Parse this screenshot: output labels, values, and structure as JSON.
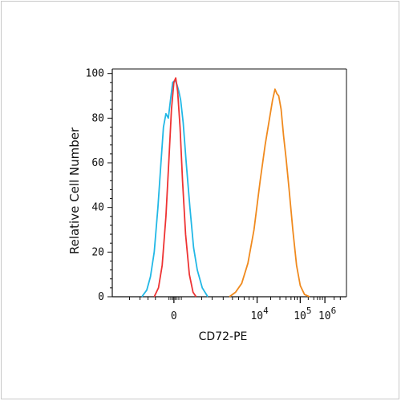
{
  "chart_data": {
    "type": "line",
    "title": "",
    "xlabel": "CD72-PE",
    "ylabel": "Relative Cell Number",
    "x_scale": "biexponential",
    "ylim": [
      0,
      100
    ],
    "y_ticks": [
      0,
      20,
      40,
      60,
      80,
      100
    ],
    "x_tick_labels": [
      {
        "base": "0",
        "exp": ""
      },
      {
        "base": "10",
        "exp": "4"
      },
      {
        "base": "10",
        "exp": "5"
      },
      {
        "base": "10",
        "exp": "6"
      }
    ],
    "grid": false,
    "legend": "none",
    "series": [
      {
        "color": "#22b8e6",
        "points": [
          [
            -0.52,
            0
          ],
          [
            -0.44,
            3
          ],
          [
            -0.38,
            9
          ],
          [
            -0.32,
            20
          ],
          [
            -0.26,
            40
          ],
          [
            -0.21,
            60
          ],
          [
            -0.17,
            76
          ],
          [
            -0.13,
            82
          ],
          [
            -0.09,
            80
          ],
          [
            -0.06,
            87
          ],
          [
            -0.02,
            96
          ],
          [
            0.02,
            97
          ],
          [
            0.05,
            95
          ],
          [
            0.08,
            92
          ],
          [
            0.11,
            88
          ],
          [
            0.15,
            78
          ],
          [
            0.2,
            60
          ],
          [
            0.26,
            40
          ],
          [
            0.32,
            22
          ],
          [
            0.38,
            12
          ],
          [
            0.46,
            4
          ],
          [
            0.55,
            0
          ]
        ]
      },
      {
        "color": "#ee3333",
        "points": [
          [
            -0.32,
            0
          ],
          [
            -0.25,
            4
          ],
          [
            -0.19,
            14
          ],
          [
            -0.13,
            36
          ],
          [
            -0.08,
            62
          ],
          [
            -0.04,
            84
          ],
          [
            0.0,
            96
          ],
          [
            0.03,
            98
          ],
          [
            0.06,
            92
          ],
          [
            0.1,
            76
          ],
          [
            0.14,
            52
          ],
          [
            0.19,
            28
          ],
          [
            0.25,
            10
          ],
          [
            0.31,
            2
          ],
          [
            0.36,
            0
          ]
        ]
      },
      {
        "color": "#f08a1e",
        "points": [
          [
            0.9,
            0
          ],
          [
            1.0,
            2
          ],
          [
            1.1,
            6
          ],
          [
            1.2,
            15
          ],
          [
            1.3,
            30
          ],
          [
            1.4,
            52
          ],
          [
            1.48,
            68
          ],
          [
            1.54,
            78
          ],
          [
            1.6,
            88
          ],
          [
            1.64,
            93
          ],
          [
            1.67,
            91
          ],
          [
            1.7,
            90
          ],
          [
            1.74,
            84
          ],
          [
            1.78,
            72
          ],
          [
            1.82,
            62
          ],
          [
            1.87,
            48
          ],
          [
            1.93,
            30
          ],
          [
            1.99,
            14
          ],
          [
            2.05,
            5
          ],
          [
            2.12,
            1
          ],
          [
            2.2,
            0
          ]
        ]
      }
    ]
  }
}
